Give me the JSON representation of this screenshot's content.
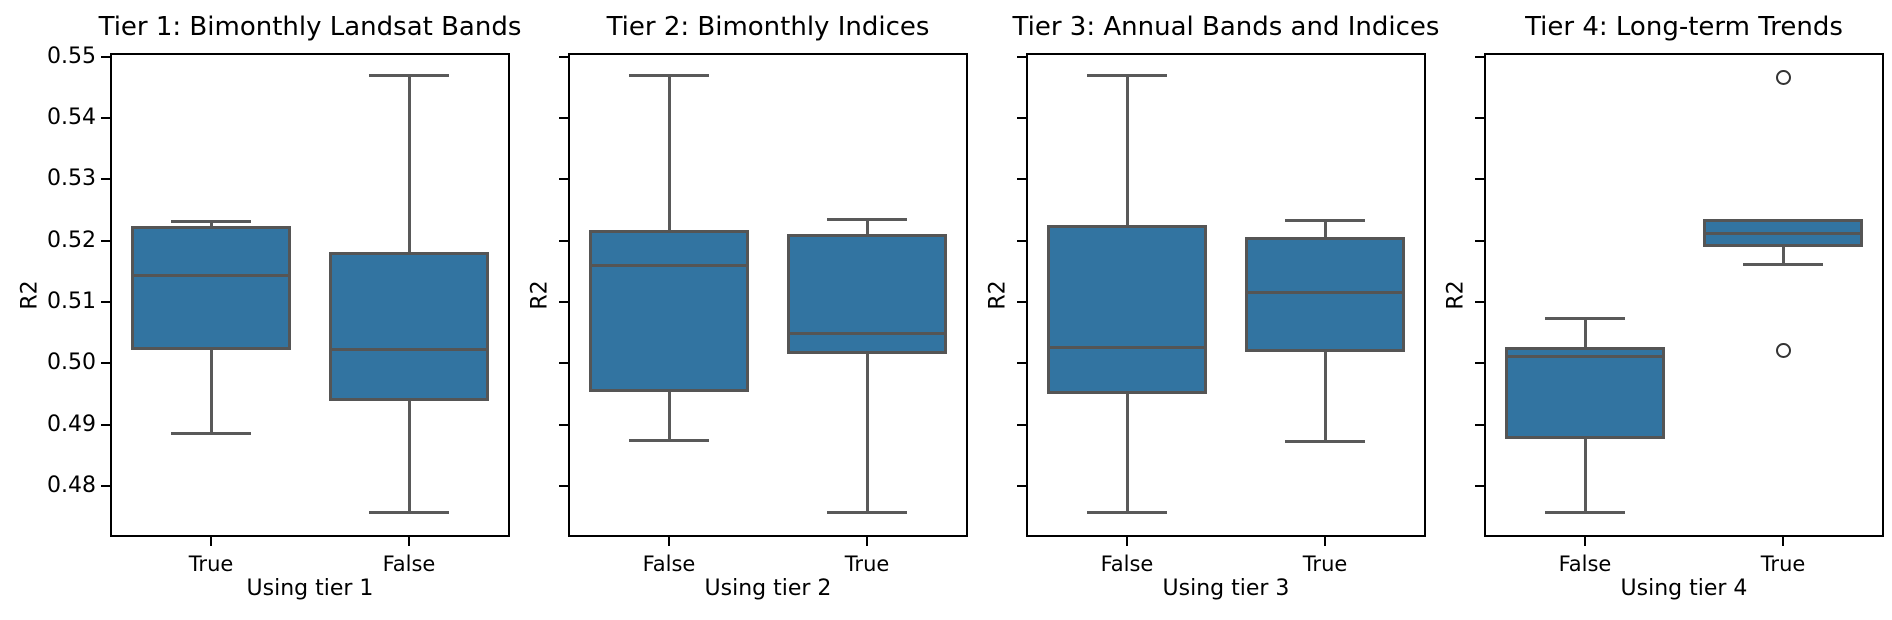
{
  "figure": {
    "ylabel": "R2",
    "y_tick_labels": [
      "0.55",
      "0.54",
      "0.53",
      "0.52",
      "0.51",
      "0.50",
      "0.49",
      "0.48"
    ],
    "colors": {
      "box_fill": "#3274A1",
      "box_edge": "#555555",
      "whisker": "#595959",
      "spine": "#000000",
      "background": "#ffffff"
    }
  },
  "chart_data": {
    "type": "boxplot",
    "ylabel": "R2",
    "ylim": [
      0.472,
      0.5503
    ],
    "y_ticks": [
      0.55,
      0.54,
      0.53,
      0.52,
      0.51,
      0.5,
      0.49,
      0.48
    ],
    "grid": false,
    "subplots": [
      {
        "title": "Tier 1: Bimonthly Landsat Bands",
        "xlabel": "Using tier 1",
        "categories": [
          "True",
          "False"
        ],
        "boxes": [
          {
            "category": "True",
            "whisker_low": 0.4885,
            "q1": 0.5025,
            "median": 0.5143,
            "q3": 0.5221,
            "whisker_high": 0.5232,
            "outliers": []
          },
          {
            "category": "False",
            "whisker_low": 0.4756,
            "q1": 0.4941,
            "median": 0.5023,
            "q3": 0.518,
            "whisker_high": 0.5469,
            "outliers": []
          }
        ]
      },
      {
        "title": "Tier 2: Bimonthly Indices",
        "xlabel": "Using tier 2",
        "categories": [
          "False",
          "True"
        ],
        "boxes": [
          {
            "category": "False",
            "whisker_low": 0.4874,
            "q1": 0.4956,
            "median": 0.516,
            "q3": 0.5215,
            "whisker_high": 0.5469,
            "outliers": []
          },
          {
            "category": "True",
            "whisker_low": 0.4756,
            "q1": 0.5017,
            "median": 0.5048,
            "q3": 0.5208,
            "whisker_high": 0.5234,
            "outliers": []
          }
        ]
      },
      {
        "title": "Tier 3: Annual Bands and Indices",
        "xlabel": "Using tier 3",
        "categories": [
          "False",
          "True"
        ],
        "boxes": [
          {
            "category": "False",
            "whisker_low": 0.4756,
            "q1": 0.4952,
            "median": 0.5026,
            "q3": 0.5224,
            "whisker_high": 0.5469,
            "outliers": []
          },
          {
            "category": "True",
            "whisker_low": 0.4872,
            "q1": 0.5021,
            "median": 0.5116,
            "q3": 0.5203,
            "whisker_high": 0.5233,
            "outliers": []
          }
        ]
      },
      {
        "title": "Tier 4: Long-term Trends",
        "xlabel": "Using tier 4",
        "categories": [
          "False",
          "True"
        ],
        "boxes": [
          {
            "category": "False",
            "whisker_low": 0.4756,
            "q1": 0.4879,
            "median": 0.5011,
            "q3": 0.5025,
            "whisker_high": 0.5073,
            "outliers": []
          },
          {
            "category": "True",
            "whisker_low": 0.5161,
            "q1": 0.5193,
            "median": 0.5212,
            "q3": 0.5233,
            "whisker_high": 0.5233,
            "outliers": [
              0.5467,
              0.5021
            ]
          }
        ]
      }
    ]
  }
}
